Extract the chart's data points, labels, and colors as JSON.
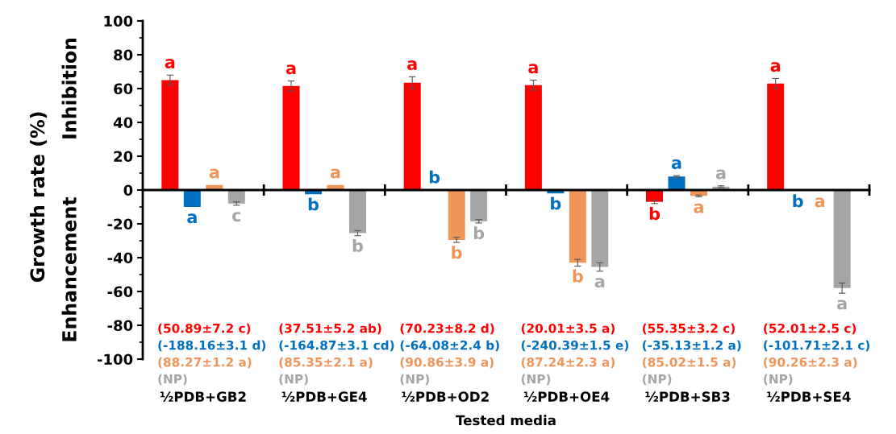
{
  "chart_data": {
    "type": "bar",
    "xlabel": "Tested media",
    "ylabel": "Growth rate (%)",
    "categories": [
      "½PDB+GB2",
      "½PDB+GE4",
      "½PDB+OD2",
      "½PDB+OE4",
      "½PDB+SB3",
      "½PDB+SE4"
    ],
    "series": [
      {
        "color": "#ff0000",
        "values": [
          65,
          61.5,
          63.5,
          62,
          -7,
          63
        ],
        "errors": [
          3,
          3,
          3.5,
          3,
          1,
          3
        ],
        "value_labels": [
          "a",
          "a",
          "a",
          "a",
          "b",
          "a"
        ]
      },
      {
        "color": "#0070c0",
        "values": [
          -10,
          -2.5,
          0,
          -2,
          8,
          -0.5
        ],
        "errors": [
          null,
          null,
          null,
          null,
          0.5,
          null
        ],
        "value_labels": [
          "a",
          "b",
          "b",
          "b",
          "a",
          "b"
        ]
      },
      {
        "color": "#f0955a",
        "values": [
          3,
          3,
          -29.5,
          -43,
          -3.5,
          -0.5
        ],
        "errors": [
          null,
          null,
          1.5,
          2,
          0.5,
          null
        ],
        "value_labels": [
          "a",
          "a",
          "b",
          "b",
          "a",
          "a"
        ]
      },
      {
        "color": "#a5a5a5",
        "values": [
          -8,
          -25.5,
          -18.5,
          -45.5,
          2,
          -58
        ],
        "errors": [
          1,
          1.5,
          1,
          2.5,
          0.5,
          3
        ],
        "value_labels": [
          "c",
          "b",
          "b",
          "a",
          "a",
          "a"
        ]
      }
    ],
    "ylim": [
      -100,
      100
    ],
    "yticks": [
      -100,
      -80,
      -60,
      -40,
      -20,
      0,
      20,
      40,
      60,
      80,
      100
    ],
    "legend": false,
    "annotations": [
      "Inhibition",
      "Enhancement",
      "(50.89±7.2 c)",
      "(-188.16±3.1 d)",
      "(88.27±1.2 a)",
      "(NP)",
      "(37.51±5.2 ab)",
      "(-164.87±3.1 cd)",
      "(85.35±2.1 a)",
      "(NP)",
      "(70.23±8.2 d)",
      "(-64.08±2.4 b)",
      "(90.86±3.9 a)",
      "(NP)",
      "(20.01±3.5 a)",
      "(-240.39±1.5 e)",
      "(87.24±2.3 a)",
      "(NP)",
      "(55.35±3.2 c)",
      "(-35.13±1.2 a)",
      "(85.02±1.5 a)",
      "(NP)",
      "(52.01±2.5 c)",
      "(-101.71±2.1 c)",
      "(90.26±2.3 a)",
      "(NP)"
    ]
  }
}
